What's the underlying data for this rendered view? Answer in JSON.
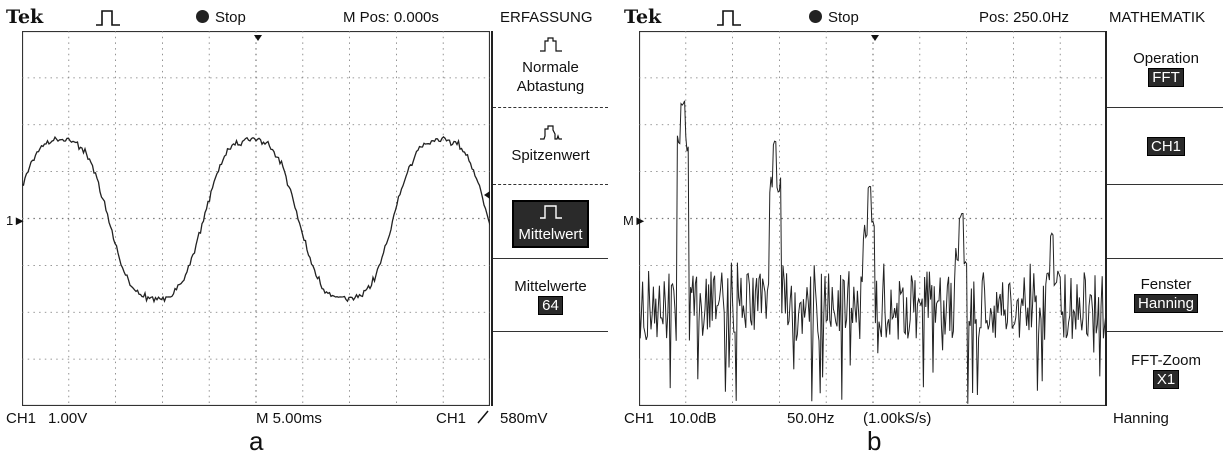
{
  "panel_a": {
    "brand": "Tek",
    "trigger_icon": "pulse-icon",
    "state": "Stop",
    "position": "M Pos: 0.000s",
    "menu_title": "ERFASSUNG",
    "menu": {
      "normal_label1": "Normale",
      "normal_label2": "Abtastung",
      "peak_label": "Spitzenwert",
      "average_label": "Mittelwert",
      "averages_label": "Mittelwerte",
      "averages_value": "64"
    },
    "channel_marker": "1",
    "bottom": {
      "channel": "CH1",
      "volts_div": "1.00V",
      "time_div": "M 5.00ms",
      "trig_channel": "CH1",
      "trig_level": "580mV"
    },
    "caption": "a"
  },
  "panel_b": {
    "brand": "Tek",
    "trigger_icon": "pulse-icon",
    "state": "Stop",
    "position": "Pos: 250.0Hz",
    "menu_title": "MATHEMATIK",
    "menu": {
      "operation_label": "Operation",
      "operation_value": "FFT",
      "source_value": "CH1",
      "window_label": "Fenster",
      "window_value": "Hanning",
      "zoom_label": "FFT-Zoom",
      "zoom_value": "X1"
    },
    "math_marker": "M",
    "bottom": {
      "channel": "CH1",
      "db_div": "10.0dB",
      "hz_div": "50.0Hz",
      "sample_rate": "(1.00kS/s)",
      "window": "Hanning"
    },
    "caption": "b"
  }
}
